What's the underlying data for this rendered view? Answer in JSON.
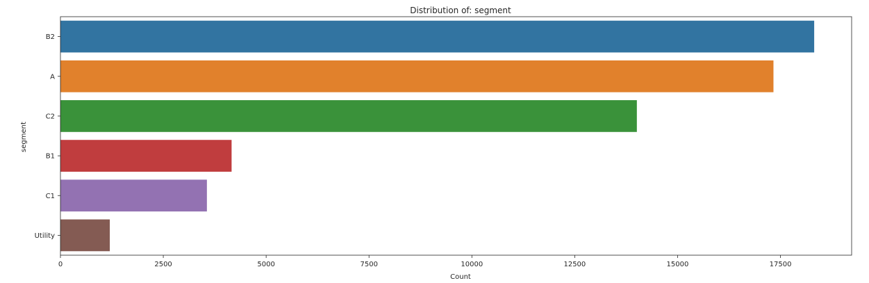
{
  "chart_data": {
    "type": "bar",
    "orientation": "horizontal",
    "title": "Distribution of: segment",
    "xlabel": "Count",
    "ylabel": "segment",
    "categories": [
      "B2",
      "A",
      "C2",
      "B1",
      "C1",
      "Utility"
    ],
    "values": [
      18320,
      17330,
      14010,
      4160,
      3560,
      1200
    ],
    "colors": [
      "#3274a1",
      "#e1812c",
      "#3a923a",
      "#c03d3e",
      "#9372b2",
      "#845b53"
    ],
    "xlim": [
      0,
      19230
    ],
    "xticks": [
      0,
      2500,
      5000,
      7500,
      10000,
      12500,
      15000,
      17500
    ],
    "xtick_labels": [
      "0",
      "2500",
      "5000",
      "7500",
      "10000",
      "12500",
      "15000",
      "17500"
    ],
    "grid": false,
    "legend": "none"
  }
}
